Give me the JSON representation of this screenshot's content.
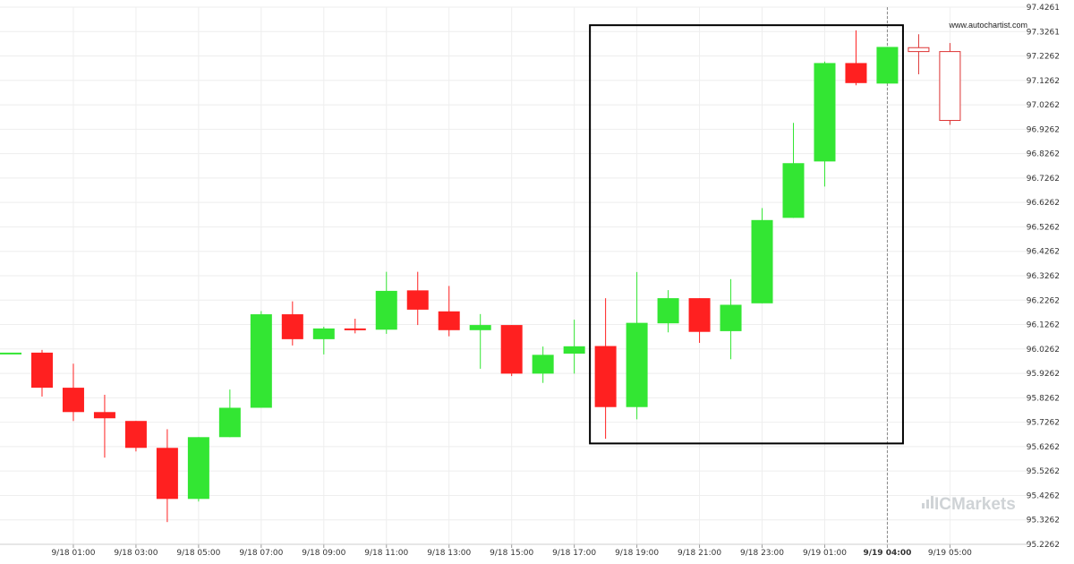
{
  "watermark": {
    "site": "www.autochartist.com",
    "brand_prefix": "IC",
    "brand_suffix": "Markets"
  },
  "colors": {
    "up": "#33e633",
    "down": "#ff2020",
    "grid": "#eeeeee",
    "box": "#000000",
    "forecast": "#dd3333",
    "vline": "#888888"
  },
  "chart_data": {
    "type": "candlestick",
    "title": "",
    "ylim": [
      95.2262,
      97.4261
    ],
    "y_ticks": [
      "97.4261",
      "97.3261",
      "97.2262",
      "97.1262",
      "97.0262",
      "96.9262",
      "96.8262",
      "96.7262",
      "96.6262",
      "96.5262",
      "96.4262",
      "96.3262",
      "96.2262",
      "96.1262",
      "96.0262",
      "95.9262",
      "95.8262",
      "95.7262",
      "95.6262",
      "95.5262",
      "95.4262",
      "95.3262",
      "95.2262"
    ],
    "x_ticks": [
      {
        "label": "9/18 01:00",
        "index": 2
      },
      {
        "label": "9/18 03:00",
        "index": 4
      },
      {
        "label": "9/18 05:00",
        "index": 6
      },
      {
        "label": "9/18 07:00",
        "index": 8
      },
      {
        "label": "9/18 09:00",
        "index": 10
      },
      {
        "label": "9/18 11:00",
        "index": 12
      },
      {
        "label": "9/18 13:00",
        "index": 14
      },
      {
        "label": "9/18 15:00",
        "index": 16
      },
      {
        "label": "9/18 17:00",
        "index": 18
      },
      {
        "label": "9/18 19:00",
        "index": 20
      },
      {
        "label": "9/18 21:00",
        "index": 22
      },
      {
        "label": "9/18 23:00",
        "index": 24
      },
      {
        "label": "9/19 01:00",
        "index": 26
      },
      {
        "label": "9/19 04:00",
        "index": 28,
        "bold": true
      },
      {
        "label": "9/19 05:00",
        "index": 30
      }
    ],
    "candles": [
      {
        "o": 96.0112,
        "h": 96.0112,
        "l": 96.0112,
        "c": 96.0112
      },
      {
        "o": 96.0112,
        "h": 96.0224,
        "l": 95.8313,
        "c": 95.8675
      },
      {
        "o": 95.8675,
        "h": 95.9659,
        "l": 95.7311,
        "c": 95.7678
      },
      {
        "o": 95.7678,
        "h": 95.8386,
        "l": 95.5812,
        "c": 95.7423
      },
      {
        "o": 95.7314,
        "h": 95.7314,
        "l": 95.6066,
        "c": 95.6212
      },
      {
        "o": 95.6212,
        "h": 95.6976,
        "l": 95.3172,
        "c": 95.4121
      },
      {
        "o": 95.4121,
        "h": 95.6651,
        "l": 95.4014,
        "c": 95.6651
      },
      {
        "o": 95.6651,
        "h": 95.8601,
        "l": 95.6651,
        "c": 95.7854
      },
      {
        "o": 95.7854,
        "h": 96.1813,
        "l": 95.7854,
        "c": 96.1683
      },
      {
        "o": 96.1683,
        "h": 96.2212,
        "l": 96.0405,
        "c": 96.0663
      },
      {
        "o": 96.0663,
        "h": 96.1172,
        "l": 96.0039,
        "c": 96.1102
      },
      {
        "o": 96.1102,
        "h": 96.1502,
        "l": 96.0902,
        "c": 96.1052
      },
      {
        "o": 96.1052,
        "h": 96.3422,
        "l": 96.0882,
        "c": 96.2642
      },
      {
        "o": 96.2662,
        "h": 96.3422,
        "l": 96.1242,
        "c": 96.1872
      },
      {
        "o": 96.1802,
        "h": 96.2842,
        "l": 96.0782,
        "c": 96.1032
      },
      {
        "o": 96.1032,
        "h": 96.1692,
        "l": 95.9452,
        "c": 96.1242
      },
      {
        "o": 96.1242,
        "h": 96.1242,
        "l": 95.9152,
        "c": 95.9252
      },
      {
        "o": 95.9252,
        "h": 96.0362,
        "l": 95.8872,
        "c": 96.0022
      },
      {
        "o": 96.0072,
        "h": 96.1462,
        "l": 95.9252,
        "c": 96.0372
      },
      {
        "o": 96.0382,
        "h": 96.2342,
        "l": 95.6582,
        "c": 95.7882
      },
      {
        "o": 95.7882,
        "h": 96.3412,
        "l": 95.7382,
        "c": 96.1332
      },
      {
        "o": 96.1312,
        "h": 96.2672,
        "l": 96.0942,
        "c": 96.2342
      },
      {
        "o": 96.2342,
        "h": 96.2342,
        "l": 96.0512,
        "c": 96.0962
      },
      {
        "o": 96.0992,
        "h": 96.3122,
        "l": 95.9842,
        "c": 96.2072
      },
      {
        "o": 96.2132,
        "h": 96.6032,
        "l": 96.2132,
        "c": 96.5542
      },
      {
        "o": 96.5632,
        "h": 96.9522,
        "l": 96.5632,
        "c": 96.7872
      },
      {
        "o": 96.7942,
        "h": 97.2032,
        "l": 96.6912,
        "c": 97.1972
      },
      {
        "o": 97.1972,
        "h": 97.3312,
        "l": 97.1062,
        "c": 97.1152
      },
      {
        "o": 97.1132,
        "h": 97.2632,
        "l": 97.1132,
        "c": 97.2632
      }
    ],
    "forecast_candles": [
      {
        "index": 29,
        "o": 97.2602,
        "h": 97.3152,
        "l": 97.1512,
        "c": 97.2442
      },
      {
        "index": 30,
        "o": 97.2442,
        "h": 97.2792,
        "l": 96.9442,
        "c": 96.9622
      }
    ],
    "pattern_box": {
      "from_index": 18.5,
      "to_index": 28.5,
      "high": 97.3522,
      "low": 95.6392
    },
    "now_index": 28
  }
}
